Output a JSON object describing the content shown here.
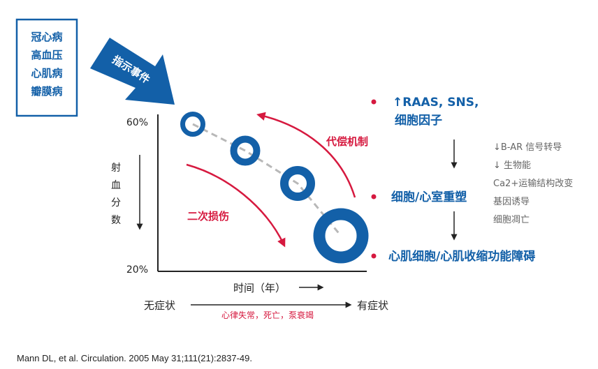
{
  "colors": {
    "blue": "#1360a8",
    "red": "#d6193f",
    "gray": "#666666",
    "line": "#b8b8b8",
    "dark": "#222222"
  },
  "diseases": [
    "冠心病",
    "高血压",
    "心肌病",
    "瓣膜病"
  ],
  "index_event": "指示事件",
  "axis": {
    "y_top": "60%",
    "y_bottom": "20%",
    "y_label": [
      "射",
      "血",
      "分",
      "数"
    ],
    "x_label": "时间（年）"
  },
  "arrows": {
    "compensation": "代偿机制",
    "secondary_injury": "二次损伤"
  },
  "stages": {
    "s1_line1": "↑RAAS, SNS,",
    "s1_line2": "细胞因子",
    "s2": "细胞/心室重塑",
    "s3": "心肌细胞/心肌收缩功能障碍"
  },
  "mechanisms": [
    "↓B-AR 信号转导",
    "↓ 生物能",
    "Ca2+运输结构改变",
    "基因诱导",
    "细胞凋亡"
  ],
  "timeline": {
    "start": "无症状",
    "end": "有症状",
    "events": "心律失常，死亡，泵衰竭"
  },
  "citation": "Mann DL, et al. Circulation. 2005 May 31;111(21):2837-49."
}
